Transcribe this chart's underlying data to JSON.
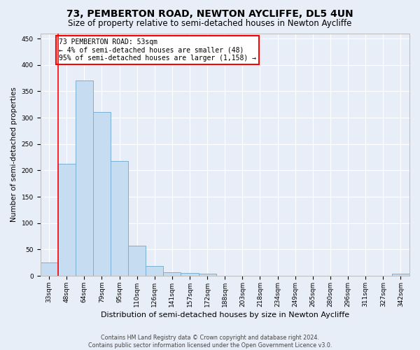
{
  "title": "73, PEMBERTON ROAD, NEWTON AYCLIFFE, DL5 4UN",
  "subtitle": "Size of property relative to semi-detached houses in Newton Aycliffe",
  "xlabel": "Distribution of semi-detached houses by size in Newton Aycliffe",
  "ylabel": "Number of semi-detached properties",
  "categories": [
    "33sqm",
    "48sqm",
    "64sqm",
    "79sqm",
    "95sqm",
    "110sqm",
    "126sqm",
    "141sqm",
    "157sqm",
    "172sqm",
    "188sqm",
    "203sqm",
    "218sqm",
    "234sqm",
    "249sqm",
    "265sqm",
    "280sqm",
    "296sqm",
    "311sqm",
    "327sqm",
    "342sqm"
  ],
  "values": [
    25,
    212,
    370,
    311,
    218,
    57,
    18,
    7,
    6,
    4,
    0,
    0,
    0,
    0,
    0,
    0,
    0,
    0,
    0,
    0,
    4
  ],
  "bar_color": "#c6dcf0",
  "bar_edge_color": "#7aafd4",
  "annotation_title": "73 PEMBERTON ROAD: 53sqm",
  "annotation_line1": "← 4% of semi-detached houses are smaller (48)",
  "annotation_line2": "95% of semi-detached houses are larger (1,158) →",
  "annotation_box_color": "white",
  "annotation_box_edge_color": "red",
  "ylim": [
    0,
    460
  ],
  "yticks": [
    0,
    50,
    100,
    150,
    200,
    250,
    300,
    350,
    400,
    450
  ],
  "footer_line1": "Contains HM Land Registry data © Crown copyright and database right 2024.",
  "footer_line2": "Contains public sector information licensed under the Open Government Licence v3.0.",
  "background_color": "#e8eef8",
  "grid_color": "white",
  "title_fontsize": 10,
  "subtitle_fontsize": 8.5,
  "tick_fontsize": 6.5,
  "ylabel_fontsize": 7.5,
  "xlabel_fontsize": 8,
  "footer_fontsize": 5.8,
  "annotation_fontsize": 7
}
